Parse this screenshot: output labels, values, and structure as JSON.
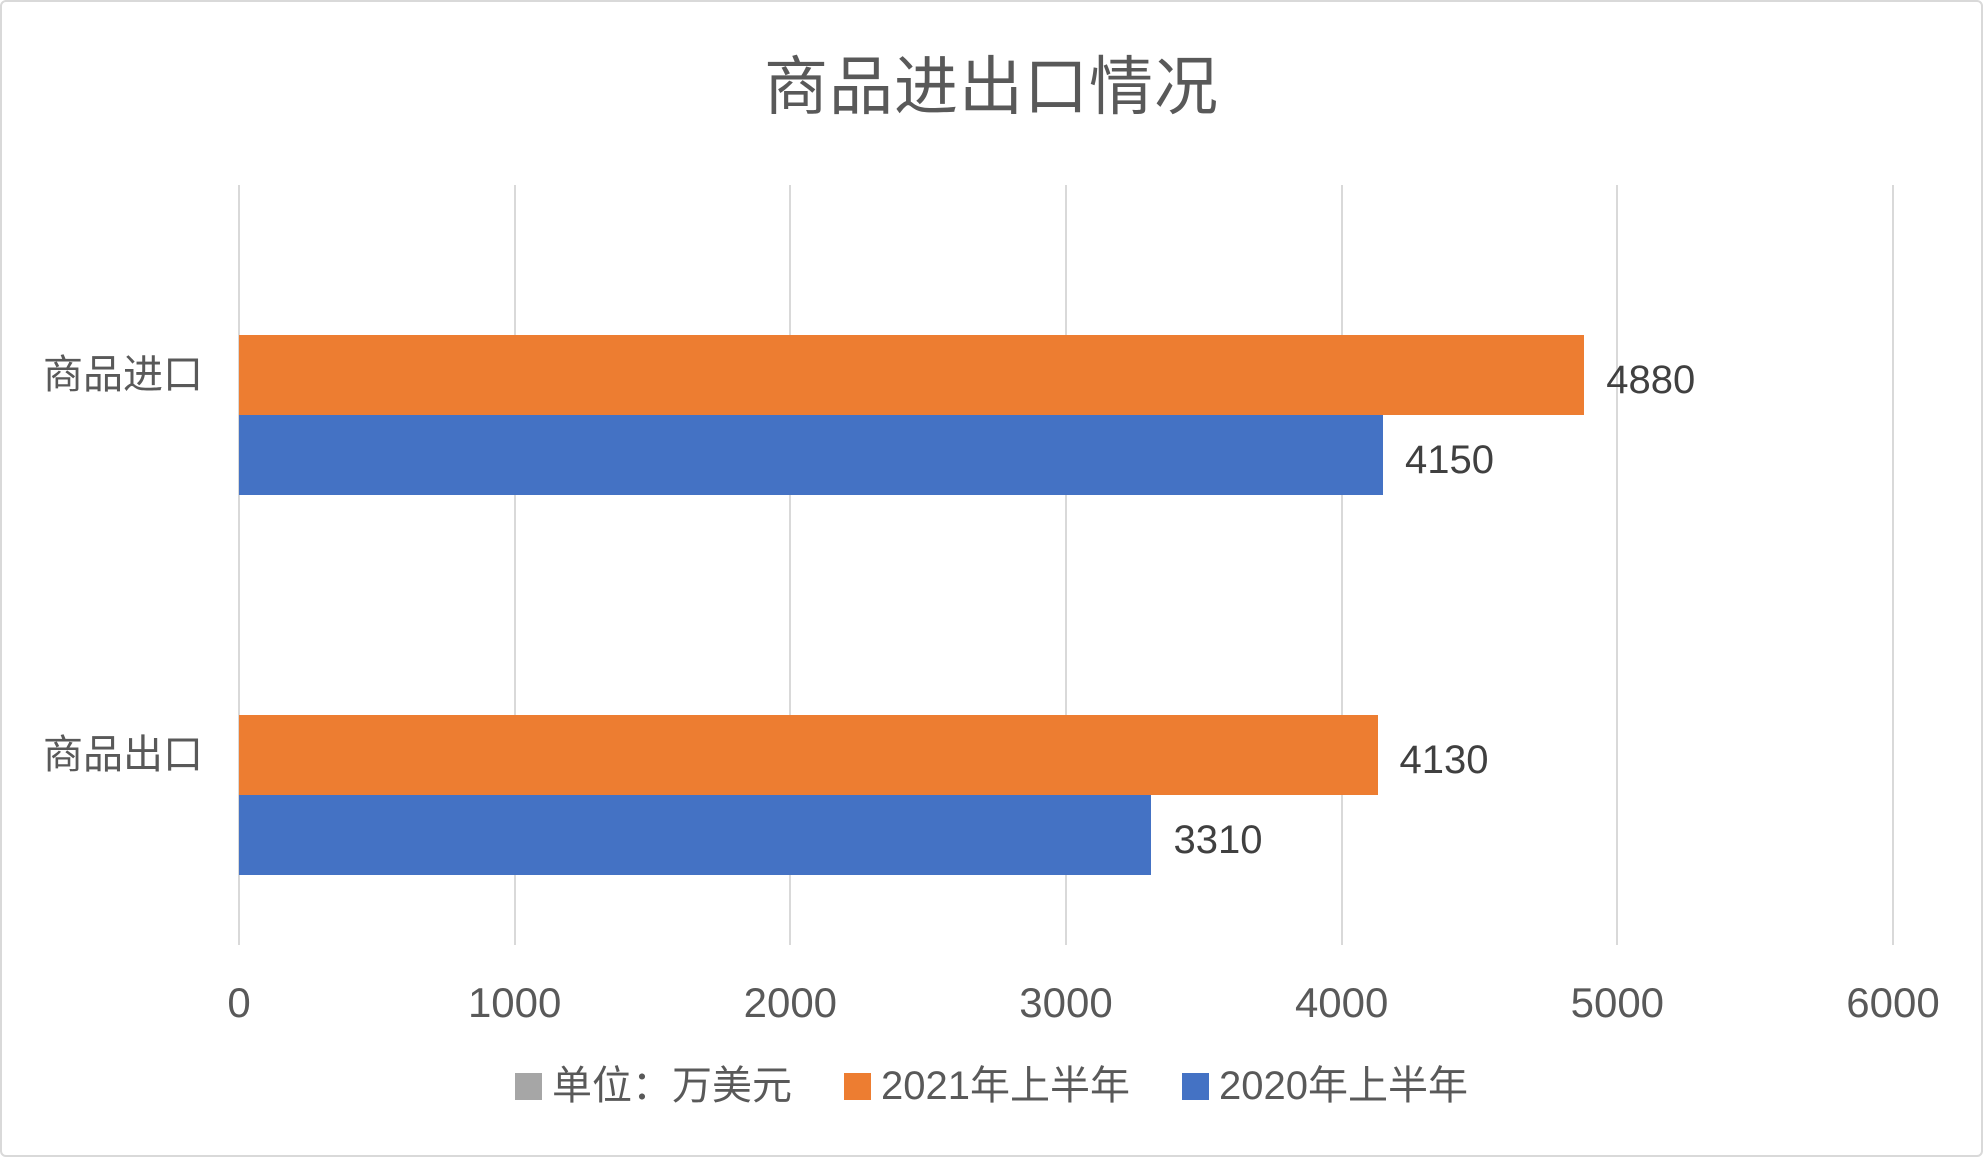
{
  "chart_data": {
    "type": "bar",
    "orientation": "horizontal",
    "title": "商品进出口情况",
    "categories": [
      "商品进口",
      "商品出口"
    ],
    "series": [
      {
        "name": "单位：万美元",
        "color": "#a6a6a6",
        "values": [
          null,
          null
        ]
      },
      {
        "name": "2021年上半年",
        "color": "#ed7d31",
        "values": [
          4880,
          4130
        ]
      },
      {
        "name": "2020年上半年",
        "color": "#4472c4",
        "values": [
          4150,
          3310
        ]
      }
    ],
    "data_labels": [
      {
        "series": "2021年上半年",
        "category": "商品进口",
        "text": "4880"
      },
      {
        "series": "2020年上半年",
        "category": "商品进口",
        "text": "4150"
      },
      {
        "series": "2021年上半年",
        "category": "商品出口",
        "text": "4130"
      },
      {
        "series": "2020年上半年",
        "category": "商品出口",
        "text": "3310"
      }
    ],
    "x_axis": {
      "min": 0,
      "max": 6000,
      "step": 1000,
      "tick_labels": [
        "0",
        "1000",
        "2000",
        "3000",
        "4000",
        "5000",
        "6000"
      ]
    },
    "legend_position": "bottom",
    "grid": true,
    "colors": {
      "gridline": "#d9d9d9",
      "title_text": "#595959",
      "axis_text": "#595959",
      "data_label_text": "#404040",
      "frame_border": "#d9d9d9"
    }
  }
}
